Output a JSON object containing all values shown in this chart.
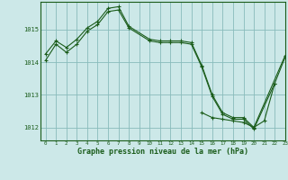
{
  "title": "Graphe pression niveau de la mer (hPa)",
  "background_color": "#cce8e8",
  "grid_color": "#88bbbb",
  "line_color": "#1a5c1a",
  "marker_color": "#1a5c1a",
  "xlim": [
    -0.5,
    23
  ],
  "ylim": [
    1011.6,
    1015.85
  ],
  "yticks": [
    1012,
    1013,
    1014,
    1015
  ],
  "xticks": [
    0,
    1,
    2,
    3,
    4,
    5,
    6,
    7,
    8,
    9,
    10,
    11,
    12,
    13,
    14,
    15,
    16,
    17,
    18,
    19,
    20,
    21,
    22,
    23
  ],
  "series": [
    {
      "x": [
        0,
        1,
        2,
        3,
        4,
        5,
        6,
        7,
        8,
        10,
        11,
        12,
        13,
        14,
        15,
        16,
        17,
        18,
        19,
        20,
        23
      ],
      "y": [
        1014.25,
        1014.65,
        1014.45,
        1014.7,
        1015.05,
        1015.25,
        1015.65,
        1015.7,
        1015.1,
        1014.7,
        1014.65,
        1014.65,
        1014.65,
        1014.6,
        1013.9,
        1013.0,
        1012.45,
        1012.3,
        1012.3,
        1012.0,
        1014.2
      ]
    },
    {
      "x": [
        0,
        1,
        2,
        3,
        4,
        5,
        6,
        7,
        8,
        10,
        11,
        12,
        13,
        14,
        15,
        16,
        17,
        18,
        19,
        20,
        22,
        23
      ],
      "y": [
        1014.05,
        1014.55,
        1014.3,
        1014.55,
        1014.95,
        1015.15,
        1015.55,
        1015.6,
        1015.05,
        1014.65,
        1014.6,
        1014.6,
        1014.6,
        1014.55,
        1013.85,
        1012.95,
        1012.4,
        1012.25,
        1012.25,
        1011.95,
        1013.35,
        1014.15
      ]
    },
    {
      "x": [
        15,
        16,
        17,
        18,
        19,
        20,
        21,
        22
      ],
      "y": [
        1012.45,
        1012.3,
        1012.25,
        1012.2,
        1012.15,
        1012.0,
        1012.2,
        1013.35
      ]
    }
  ]
}
